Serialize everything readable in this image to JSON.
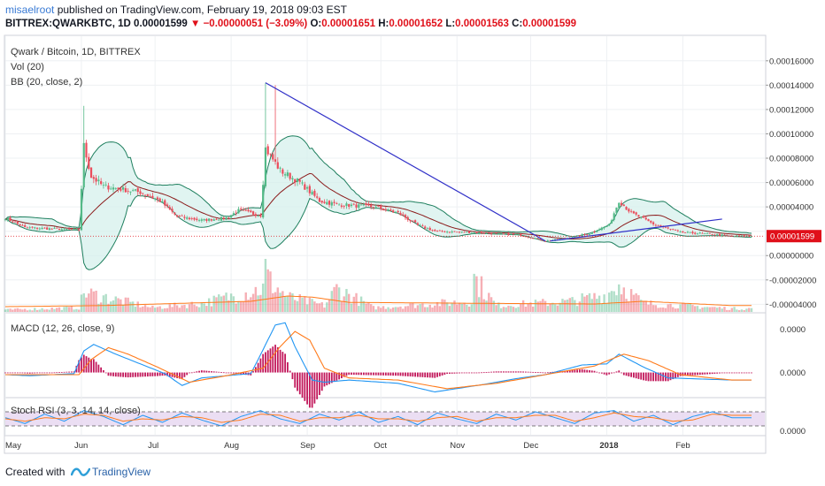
{
  "header": {
    "user": "misaelroot",
    "published_text": " published on TradingView.com, February 19, 2018 09:03 EST",
    "symbol": "BITTREX:QWARKBTC, 1D",
    "last": "0.00001599",
    "change": "▼ −0.00000051 (−3.09%)",
    "o_label": "O:",
    "o_value": "0.00001651",
    "h_label": "H:",
    "h_value": "0.00001652",
    "l_label": "L:",
    "l_value": "0.00001563",
    "c_label": "C:",
    "c_value": "0.00001599"
  },
  "footer": {
    "created_with": "Created with",
    "brand": "TradingView"
  },
  "colors": {
    "up": "#53b987",
    "down": "#eb4d5c",
    "bb_fill": "#d6f0ec",
    "bb_band": "#1e7f5e",
    "bb_basis": "#8b1b1b",
    "trend": "#3030c8",
    "macd": "#2196f3",
    "signal": "#ff7a1a",
    "hist": "#c2185b",
    "stoch_k": "#2196f3",
    "stoch_d": "#ff7a1a",
    "rsi_band": "#e6d6f0",
    "last_price": "#e0101a"
  },
  "chart_data": [
    {
      "type": "candlestick",
      "title": "Qwark / Bitcoin, 1D, BITTREX",
      "legend": [
        "Vol (20)",
        "BB (20, close, 2)"
      ],
      "y_tick_labels": [
        "0.00016000",
        "0.00014000",
        "0.00012000",
        "0.00010000",
        "0.00008000",
        "0.00006000",
        "0.00004000",
        "0.00002000",
        "0.00000000",
        "-0.00002000",
        "-0.00004000"
      ],
      "y_ticks": [
        0.00016,
        0.00014,
        0.00012,
        0.0001,
        8e-05,
        6e-05,
        4e-05,
        2e-05,
        0.0,
        -2e-05,
        -4e-05
      ],
      "ylim": [
        -4.7e-05,
        0.000178
      ],
      "last_price_label": "0.00001599",
      "last_price": 1.599e-05,
      "x_tick_labels": [
        "May",
        "Jun",
        "Jul",
        "Aug",
        "Sep",
        "Oct",
        "Nov",
        "Dec",
        "2018",
        "Feb"
      ],
      "x_tick_days": [
        0,
        31,
        61,
        92,
        123,
        153,
        184,
        214,
        245,
        276
      ],
      "x_range_days": [
        0,
        304
      ],
      "price_anchors": [
        [
          0,
          3.1e-05
        ],
        [
          8,
          2.3e-05
        ],
        [
          30,
          2.1e-05
        ],
        [
          32,
          9e-05
        ],
        [
          35,
          6.5e-05
        ],
        [
          40,
          5.7e-05
        ],
        [
          55,
          5.2e-05
        ],
        [
          63,
          4.5e-05
        ],
        [
          70,
          3.2e-05
        ],
        [
          80,
          2.9e-05
        ],
        [
          90,
          3.1e-05
        ],
        [
          95,
          3.7e-05
        ],
        [
          104,
          3.3e-05
        ],
        [
          106,
          8.8e-05
        ],
        [
          112,
          7e-05
        ],
        [
          120,
          6e-05
        ],
        [
          128,
          4.5e-05
        ],
        [
          135,
          4.2e-05
        ],
        [
          150,
          4e-05
        ],
        [
          160,
          3.5e-05
        ],
        [
          168,
          2.5e-05
        ],
        [
          175,
          2e-05
        ],
        [
          190,
          1.9e-05
        ],
        [
          210,
          1.7e-05
        ],
        [
          220,
          1.2e-05
        ],
        [
          228,
          1.4e-05
        ],
        [
          238,
          1.8e-05
        ],
        [
          242,
          2.2e-05
        ],
        [
          246,
          2.5e-05
        ],
        [
          250,
          4.5e-05
        ],
        [
          255,
          3.5e-05
        ],
        [
          265,
          2.5e-05
        ],
        [
          275,
          1.9e-05
        ],
        [
          285,
          1.8e-05
        ],
        [
          296,
          1.6e-05
        ]
      ],
      "spikes": [
        {
          "day": 32,
          "high": 0.000123
        },
        {
          "day": 106,
          "high": 0.000142
        },
        {
          "day": 110,
          "high": 0.00014
        }
      ],
      "trendlines": [
        {
          "from": [
            106,
            0.000142
          ],
          "to": [
            220,
            1.2e-05
          ]
        },
        {
          "from": [
            222,
            1.2e-05
          ],
          "to": [
            292,
            3e-05
          ]
        }
      ],
      "volume_anchors": [
        [
          0,
          0.05
        ],
        [
          30,
          0.1
        ],
        [
          32,
          0.45
        ],
        [
          60,
          0.1
        ],
        [
          80,
          0.2
        ],
        [
          105,
          0.55
        ],
        [
          106,
          1.0
        ],
        [
          108,
          0.7
        ],
        [
          112,
          0.5
        ],
        [
          115,
          0.35
        ],
        [
          130,
          0.15
        ],
        [
          135,
          0.55
        ],
        [
          150,
          0.1
        ],
        [
          190,
          0.25
        ],
        [
          191,
          0.8
        ],
        [
          200,
          0.15
        ],
        [
          230,
          0.25
        ],
        [
          245,
          0.4
        ],
        [
          250,
          0.65
        ],
        [
          260,
          0.2
        ],
        [
          296,
          0.08
        ]
      ],
      "volume_ma_anchors": [
        [
          0,
          0.1
        ],
        [
          40,
          0.12
        ],
        [
          100,
          0.2
        ],
        [
          115,
          0.3
        ],
        [
          125,
          0.28
        ],
        [
          140,
          0.18
        ],
        [
          200,
          0.16
        ],
        [
          240,
          0.15
        ],
        [
          260,
          0.2
        ],
        [
          296,
          0.12
        ]
      ]
    },
    {
      "type": "line",
      "title": "MACD (12, 26, close, 9)",
      "y_tick_labels": [
        "0.0000",
        "0.0000"
      ],
      "y_ticks": [
        2e-05,
        0.0
      ],
      "ylim": [
        -1e-05,
        2.6e-05
      ],
      "macd_anchors": [
        [
          0,
          -1e-06
        ],
        [
          10,
          -1.5e-06
        ],
        [
          28,
          -5e-07
        ],
        [
          32,
          1e-05
        ],
        [
          36,
          1.3e-05
        ],
        [
          45,
          8.5e-06
        ],
        [
          55,
          4e-06
        ],
        [
          65,
          -5e-07
        ],
        [
          72,
          -6e-06
        ],
        [
          80,
          -2.5e-06
        ],
        [
          100,
          -5e-07
        ],
        [
          103,
          6e-06
        ],
        [
          110,
          2.2e-05
        ],
        [
          114,
          2.3e-05
        ],
        [
          118,
          1.2e-05
        ],
        [
          125,
          -3.5e-06
        ],
        [
          130,
          -4.5e-06
        ],
        [
          140,
          -3.5e-06
        ],
        [
          160,
          -5e-06
        ],
        [
          175,
          -9e-06
        ],
        [
          195,
          -5.5e-06
        ],
        [
          210,
          -2.5e-06
        ],
        [
          220,
          -1e-06
        ],
        [
          235,
          3.5e-06
        ],
        [
          245,
          4e-06
        ],
        [
          250,
          8.5e-06
        ],
        [
          260,
          2.5e-06
        ],
        [
          270,
          -2.5e-06
        ],
        [
          296,
          -3.5e-06
        ]
      ],
      "signal_anchors": [
        [
          0,
          -1e-06
        ],
        [
          30,
          -1e-06
        ],
        [
          35,
          6e-06
        ],
        [
          42,
          1.15e-05
        ],
        [
          50,
          8.5e-06
        ],
        [
          62,
          2.5e-06
        ],
        [
          75,
          -4.5e-06
        ],
        [
          90,
          -1.5e-06
        ],
        [
          105,
          2e-06
        ],
        [
          112,
          1.2e-05
        ],
        [
          118,
          1.9e-05
        ],
        [
          124,
          1.5e-05
        ],
        [
          130,
          2e-06
        ],
        [
          140,
          -2.5e-06
        ],
        [
          160,
          -3.5e-06
        ],
        [
          180,
          -7.5e-06
        ],
        [
          200,
          -5e-06
        ],
        [
          220,
          -1e-06
        ],
        [
          240,
          3e-06
        ],
        [
          252,
          8.5e-06
        ],
        [
          262,
          5.5e-06
        ],
        [
          275,
          -1e-06
        ],
        [
          296,
          -3.5e-06
        ]
      ]
    },
    {
      "type": "line",
      "title": "Stoch RSI (3, 3, 14, 14, close)",
      "y_tick_labels": [
        "0.0000"
      ],
      "y_ticks": [
        0.0
      ],
      "ylim": [
        -10,
        110
      ],
      "band": [
        20,
        80
      ],
      "k_anchors": [
        [
          0,
          55
        ],
        [
          8,
          30
        ],
        [
          16,
          70
        ],
        [
          24,
          40
        ],
        [
          32,
          85
        ],
        [
          40,
          60
        ],
        [
          48,
          25
        ],
        [
          56,
          65
        ],
        [
          64,
          35
        ],
        [
          72,
          75
        ],
        [
          80,
          45
        ],
        [
          88,
          20
        ],
        [
          96,
          60
        ],
        [
          104,
          85
        ],
        [
          112,
          50
        ],
        [
          120,
          30
        ],
        [
          128,
          70
        ],
        [
          136,
          45
        ],
        [
          144,
          80
        ],
        [
          152,
          35
        ],
        [
          160,
          60
        ],
        [
          168,
          25
        ],
        [
          176,
          75
        ],
        [
          184,
          50
        ],
        [
          192,
          30
        ],
        [
          200,
          70
        ],
        [
          208,
          45
        ],
        [
          216,
          80
        ],
        [
          224,
          55
        ],
        [
          232,
          30
        ],
        [
          240,
          75
        ],
        [
          248,
          85
        ],
        [
          256,
          40
        ],
        [
          264,
          65
        ],
        [
          272,
          25
        ],
        [
          280,
          60
        ],
        [
          288,
          80
        ],
        [
          296,
          55
        ]
      ],
      "d_anchors": [
        [
          0,
          50
        ],
        [
          8,
          40
        ],
        [
          16,
          55
        ],
        [
          24,
          50
        ],
        [
          32,
          70
        ],
        [
          40,
          65
        ],
        [
          48,
          40
        ],
        [
          56,
          50
        ],
        [
          64,
          45
        ],
        [
          72,
          60
        ],
        [
          80,
          55
        ],
        [
          88,
          35
        ],
        [
          96,
          45
        ],
        [
          104,
          70
        ],
        [
          112,
          65
        ],
        [
          120,
          40
        ],
        [
          128,
          55
        ],
        [
          136,
          55
        ],
        [
          144,
          65
        ],
        [
          152,
          50
        ],
        [
          160,
          50
        ],
        [
          168,
          40
        ],
        [
          176,
          55
        ],
        [
          184,
          60
        ],
        [
          192,
          40
        ],
        [
          200,
          55
        ],
        [
          208,
          55
        ],
        [
          216,
          65
        ],
        [
          224,
          65
        ],
        [
          232,
          40
        ],
        [
          240,
          55
        ],
        [
          248,
          75
        ],
        [
          256,
          60
        ],
        [
          264,
          55
        ],
        [
          272,
          40
        ],
        [
          280,
          45
        ],
        [
          288,
          70
        ],
        [
          296,
          65
        ]
      ]
    }
  ]
}
